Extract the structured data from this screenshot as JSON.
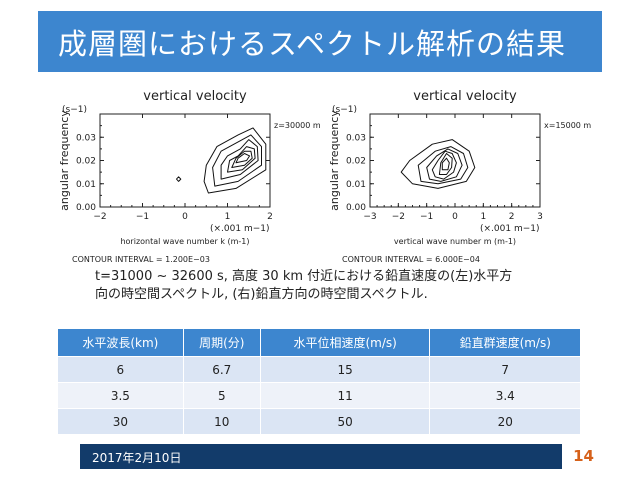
{
  "slide": {
    "title": "成層圏におけるスペクトル解析の結果",
    "date": "2017年2月10日",
    "page_number": "14",
    "caption_line1": "t=31000 ~ 32600 s, 高度 30 km 付近における鉛直速度の(左)水平方",
    "caption_line2": "向の時空間スペクトル, (右)鉛直方向の時空間スペクトル."
  },
  "chart_data": [
    {
      "type": "contour",
      "title": "vertical velocity",
      "ylabel": "angular frequency",
      "yunit": "(s−1)",
      "xlabel": "horizontal wave number k (m-1)",
      "xunit": "(×.001 m−1)",
      "annotation": "z=30000 m",
      "contour_interval": "CONTOUR INTERVAL = 1.200E−03",
      "xlim": [
        -2,
        2
      ],
      "ylim": [
        0,
        0.04
      ],
      "xticks": [
        "−2",
        "−1",
        "0",
        "1",
        "2"
      ],
      "yticks": [
        "0.00",
        "0.01",
        "0.02",
        "0.03"
      ],
      "levels": [
        {
          "points": [
            [
              0.55,
              0.006
            ],
            [
              1.2,
              0.008
            ],
            [
              1.9,
              0.016
            ],
            [
              1.9,
              0.027
            ],
            [
              1.6,
              0.034
            ],
            [
              1.25,
              0.031
            ],
            [
              0.75,
              0.026
            ],
            [
              0.5,
              0.018
            ],
            [
              0.45,
              0.011
            ]
          ]
        },
        {
          "points": [
            [
              0.7,
              0.009
            ],
            [
              1.25,
              0.011
            ],
            [
              1.8,
              0.018
            ],
            [
              1.8,
              0.026
            ],
            [
              1.55,
              0.031
            ],
            [
              1.25,
              0.028
            ],
            [
              0.85,
              0.024
            ],
            [
              0.65,
              0.017
            ]
          ]
        },
        {
          "points": [
            [
              0.85,
              0.012
            ],
            [
              1.3,
              0.014
            ],
            [
              1.72,
              0.02
            ],
            [
              1.7,
              0.026
            ],
            [
              1.5,
              0.029
            ],
            [
              1.3,
              0.025
            ],
            [
              1.0,
              0.022
            ],
            [
              0.85,
              0.018
            ]
          ]
        },
        {
          "points": [
            [
              1.0,
              0.015
            ],
            [
              1.35,
              0.016
            ],
            [
              1.65,
              0.021
            ],
            [
              1.63,
              0.025
            ],
            [
              1.45,
              0.026
            ],
            [
              1.25,
              0.022
            ],
            [
              1.05,
              0.02
            ]
          ]
        },
        {
          "points": [
            [
              1.1,
              0.017
            ],
            [
              1.4,
              0.018
            ],
            [
              1.58,
              0.021
            ],
            [
              1.55,
              0.024
            ],
            [
              1.4,
              0.024
            ],
            [
              1.2,
              0.021
            ]
          ]
        },
        {
          "points": [
            [
              1.2,
              0.019
            ],
            [
              1.45,
              0.02
            ],
            [
              1.52,
              0.022
            ],
            [
              1.4,
              0.023
            ],
            [
              1.25,
              0.021
            ]
          ]
        }
      ],
      "extra_contours": [
        {
          "points": [
            [
              -0.15,
              0.011
            ],
            [
              -0.1,
              0.012
            ],
            [
              -0.15,
              0.013
            ],
            [
              -0.2,
              0.012
            ]
          ]
        }
      ]
    },
    {
      "type": "contour",
      "title": "vertical velocity",
      "ylabel": "angular frequency",
      "yunit": "(s−1)",
      "xlabel": "vertical wave number m (m-1)",
      "xunit": "(×.001 m−1)",
      "annotation": "x=15000 m",
      "contour_interval": "CONTOUR INTERVAL = 6.000E−04",
      "xlim": [
        -3,
        3
      ],
      "ylim": [
        0,
        0.04
      ],
      "xticks": [
        "−3",
        "−2",
        "−1",
        "0",
        "1",
        "2",
        "3"
      ],
      "yticks": [
        "0.00",
        "0.01",
        "0.02",
        "0.03"
      ],
      "levels": [
        {
          "points": [
            [
              -1.5,
              0.01
            ],
            [
              -0.6,
              0.008
            ],
            [
              0.4,
              0.011
            ],
            [
              0.7,
              0.017
            ],
            [
              0.5,
              0.024
            ],
            [
              -0.1,
              0.029
            ],
            [
              -0.8,
              0.027
            ],
            [
              -1.6,
              0.02
            ],
            [
              -1.9,
              0.015
            ]
          ]
        },
        {
          "points": [
            [
              -1.2,
              0.011
            ],
            [
              -0.6,
              0.01
            ],
            [
              0.2,
              0.012
            ],
            [
              0.45,
              0.017
            ],
            [
              0.3,
              0.023
            ],
            [
              -0.15,
              0.026
            ],
            [
              -0.7,
              0.024
            ],
            [
              -1.3,
              0.018
            ]
          ]
        },
        {
          "points": [
            [
              -0.9,
              0.012
            ],
            [
              -0.5,
              0.011
            ],
            [
              0.05,
              0.013
            ],
            [
              0.25,
              0.018
            ],
            [
              0.1,
              0.023
            ],
            [
              -0.25,
              0.025
            ],
            [
              -0.65,
              0.022
            ],
            [
              -1.0,
              0.017
            ]
          ]
        },
        {
          "points": [
            [
              -0.7,
              0.013
            ],
            [
              -0.4,
              0.012
            ],
            [
              -0.05,
              0.015
            ],
            [
              0.05,
              0.019
            ],
            [
              -0.1,
              0.023
            ],
            [
              -0.35,
              0.024
            ],
            [
              -0.6,
              0.02
            ],
            [
              -0.8,
              0.016
            ]
          ]
        },
        {
          "points": [
            [
              -0.55,
              0.014
            ],
            [
              -0.3,
              0.014
            ],
            [
              -0.12,
              0.017
            ],
            [
              -0.1,
              0.021
            ],
            [
              -0.3,
              0.023
            ],
            [
              -0.5,
              0.019
            ]
          ]
        },
        {
          "points": [
            [
              -0.45,
              0.016
            ],
            [
              -0.25,
              0.016
            ],
            [
              -0.2,
              0.019
            ],
            [
              -0.3,
              0.021
            ],
            [
              -0.45,
              0.019
            ]
          ]
        }
      ],
      "extra_contours": []
    }
  ],
  "table": {
    "headers": [
      "水平波長(km)",
      "周期(分)",
      "水平位相速度(m/s)",
      "鉛直群速度(m/s)"
    ],
    "rows": [
      [
        "6",
        "6.7",
        "15",
        "7"
      ],
      [
        "3.5",
        "5",
        "11",
        "3.4"
      ],
      [
        "30",
        "10",
        "50",
        "20"
      ]
    ]
  },
  "colors": {
    "title_bar": "#3d86cf",
    "table_header": "#3d86cf",
    "footer_bar": "#123b6a",
    "page_number": "#d6611a"
  }
}
